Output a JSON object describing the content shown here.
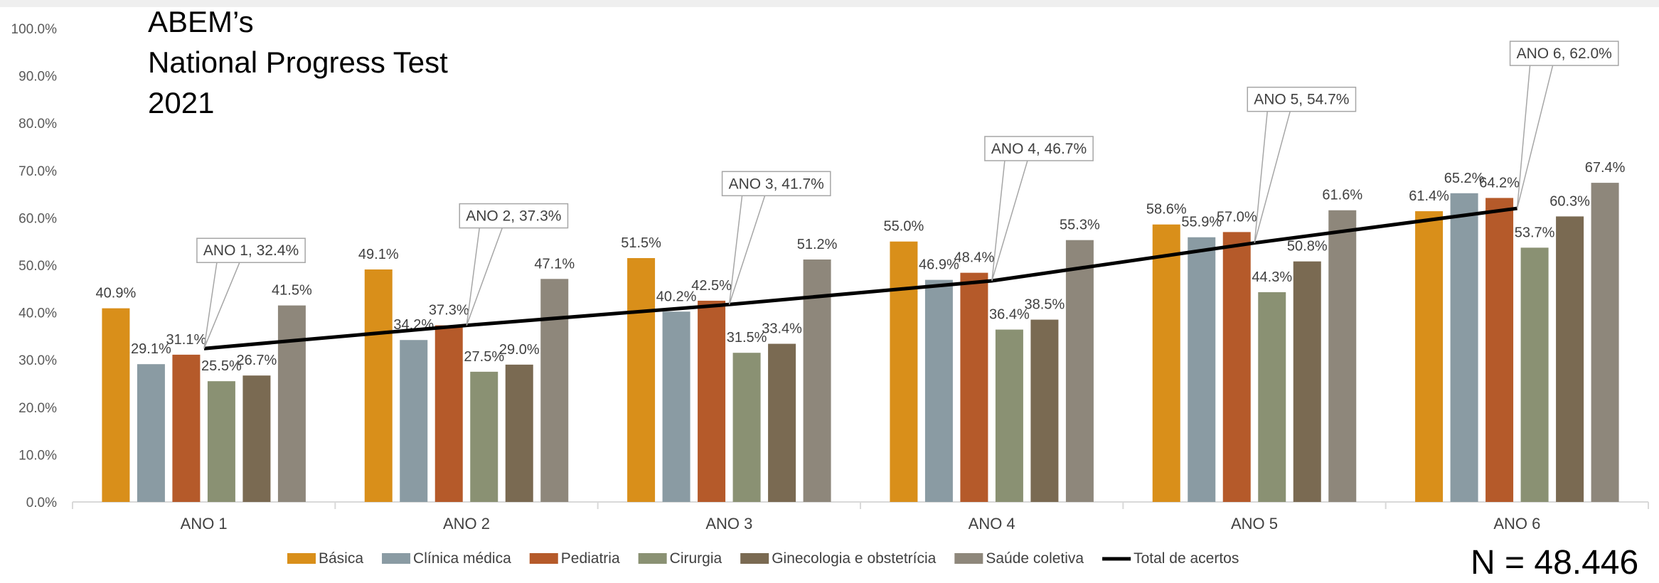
{
  "title_lines": [
    "ABEM’s",
    "National Progress Test",
    "2021"
  ],
  "n_label": "N = 48.446",
  "chart_data": {
    "type": "bar",
    "categories": [
      "ANO 1",
      "ANO 2",
      "ANO 3",
      "ANO 4",
      "ANO 5",
      "ANO 6"
    ],
    "ylim": [
      0,
      100
    ],
    "y_ticks": [
      0,
      10,
      20,
      30,
      40,
      50,
      60,
      70,
      80,
      90,
      100
    ],
    "y_tick_labels": [
      "0.0%",
      "10.0%",
      "20.0%",
      "30.0%",
      "40.0%",
      "50.0%",
      "60.0%",
      "70.0%",
      "80.0%",
      "90.0%",
      "100.0%"
    ],
    "grid": false,
    "legend_position": "bottom",
    "series": [
      {
        "name": "Básica",
        "color": "#D98F1A",
        "values": [
          40.9,
          49.1,
          51.5,
          55.0,
          58.6,
          61.4
        ]
      },
      {
        "name": "Clínica médica",
        "color": "#8A9BA3",
        "values": [
          29.1,
          34.2,
          40.2,
          46.9,
          55.9,
          65.2
        ]
      },
      {
        "name": "Pediatria",
        "color": "#B55A2A",
        "values": [
          31.1,
          37.3,
          42.5,
          48.4,
          57.0,
          64.2
        ]
      },
      {
        "name": "Cirurgia",
        "color": "#8A9173",
        "values": [
          25.5,
          27.5,
          31.5,
          36.4,
          44.3,
          53.7
        ]
      },
      {
        "name": "Ginecologia e obstetrícia",
        "color": "#7A6A52",
        "values": [
          26.7,
          29.0,
          33.4,
          38.5,
          50.8,
          60.3
        ]
      },
      {
        "name": "Saúde coletiva",
        "color": "#8E877B",
        "values": [
          41.5,
          47.1,
          51.2,
          55.3,
          61.6,
          67.4
        ]
      }
    ],
    "line_series": {
      "name": "Total de acertos",
      "color": "#000000",
      "values": [
        32.4,
        37.3,
        41.7,
        46.7,
        54.7,
        62.0
      ],
      "labels": [
        "ANO 1, 32.4%",
        "ANO 2, 37.3%",
        "ANO 3, 41.7%",
        "ANO 4, 46.7%",
        "ANO 5, 54.7%",
        "ANO 6, 62.0%"
      ]
    }
  }
}
